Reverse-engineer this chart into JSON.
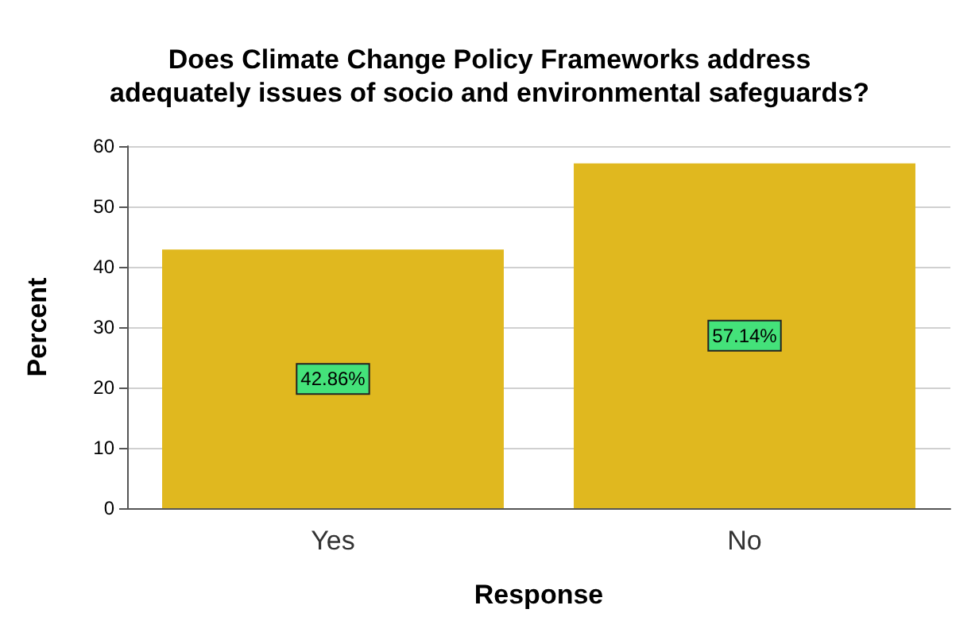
{
  "chart_data": {
    "type": "bar",
    "title": "Does Climate Change Policy Frameworks address\nadequately issues of socio and environmental safeguards?",
    "xlabel": "Response",
    "ylabel": "Percent",
    "categories": [
      "Yes",
      "No"
    ],
    "values": [
      42.86,
      57.14
    ],
    "color": "#e0b81f",
    "value_labels": [
      "42.86%",
      "57.14%"
    ],
    "ylim": [
      0,
      60
    ],
    "yticks": [
      0,
      10,
      20,
      30,
      40,
      50,
      60
    ],
    "grid": "y"
  }
}
